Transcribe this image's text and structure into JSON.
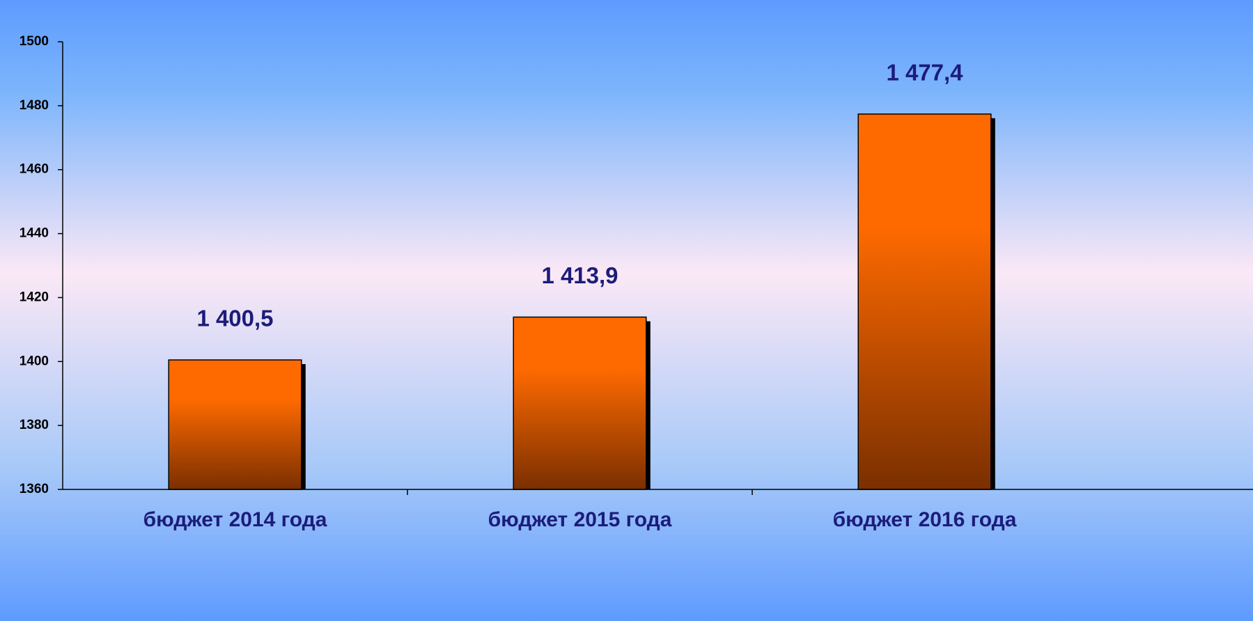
{
  "chart_data": {
    "type": "bar",
    "categories": [
      "бюджет 2014 года",
      "бюджет 2015 года",
      "бюджет 2016 года"
    ],
    "values": [
      1400.5,
      1413.9,
      1477.4
    ],
    "value_labels": [
      "1 400,5",
      "1 413,9",
      "1 477,4"
    ],
    "color": "#ff6a00",
    "ylim": [
      1360,
      1500
    ],
    "yticks": [
      1360,
      1380,
      1400,
      1420,
      1440,
      1460,
      1480,
      1500
    ],
    "grid": false
  }
}
